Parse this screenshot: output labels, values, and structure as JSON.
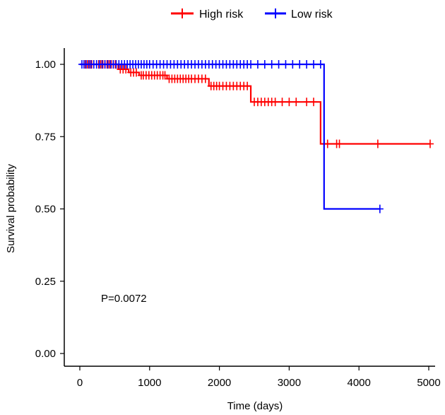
{
  "chart_data": {
    "type": "line",
    "step": true,
    "xlabel": "Time (days)",
    "ylabel": "Survival probability",
    "xlim": [
      0,
      5000
    ],
    "ylim": [
      0,
      1
    ],
    "xticks": [
      0,
      1000,
      2000,
      3000,
      4000,
      5000
    ],
    "xtick_labels": [
      "0",
      "1000",
      "2000",
      "3000",
      "4000",
      "5000"
    ],
    "yticks": [
      0,
      0.25,
      0.5,
      0.75,
      1.0
    ],
    "ytick_labels": [
      "0.00",
      "0.25",
      "0.50",
      "0.75",
      "1.00"
    ],
    "grid": false,
    "legend_position": "top-center",
    "annotation": "P=0.0072",
    "series": [
      {
        "name": "High risk",
        "color": "#ff0000",
        "steps": [
          [
            0,
            1.0
          ],
          [
            550,
            0.983
          ],
          [
            700,
            0.972
          ],
          [
            850,
            0.962
          ],
          [
            1250,
            0.95
          ],
          [
            1850,
            0.925
          ],
          [
            2450,
            0.87
          ],
          [
            3450,
            0.725
          ],
          [
            5020,
            0.725
          ]
        ],
        "censors": [
          [
            80,
            1.0
          ],
          [
            110,
            1.0
          ],
          [
            140,
            1.0
          ],
          [
            170,
            1.0
          ],
          [
            200,
            1.0
          ],
          [
            240,
            1.0
          ],
          [
            270,
            1.0
          ],
          [
            300,
            1.0
          ],
          [
            330,
            1.0
          ],
          [
            360,
            1.0
          ],
          [
            390,
            1.0
          ],
          [
            420,
            1.0
          ],
          [
            450,
            1.0
          ],
          [
            480,
            1.0
          ],
          [
            510,
            1.0
          ],
          [
            580,
            0.983
          ],
          [
            620,
            0.983
          ],
          [
            660,
            0.983
          ],
          [
            730,
            0.972
          ],
          [
            770,
            0.972
          ],
          [
            810,
            0.972
          ],
          [
            880,
            0.962
          ],
          [
            910,
            0.962
          ],
          [
            950,
            0.962
          ],
          [
            990,
            0.962
          ],
          [
            1030,
            0.962
          ],
          [
            1070,
            0.962
          ],
          [
            1110,
            0.962
          ],
          [
            1150,
            0.962
          ],
          [
            1190,
            0.962
          ],
          [
            1220,
            0.962
          ],
          [
            1280,
            0.95
          ],
          [
            1320,
            0.95
          ],
          [
            1360,
            0.95
          ],
          [
            1400,
            0.95
          ],
          [
            1440,
            0.95
          ],
          [
            1480,
            0.95
          ],
          [
            1520,
            0.95
          ],
          [
            1560,
            0.95
          ],
          [
            1600,
            0.95
          ],
          [
            1650,
            0.95
          ],
          [
            1700,
            0.95
          ],
          [
            1750,
            0.95
          ],
          [
            1800,
            0.95
          ],
          [
            1880,
            0.925
          ],
          [
            1920,
            0.925
          ],
          [
            1960,
            0.925
          ],
          [
            2000,
            0.925
          ],
          [
            2050,
            0.925
          ],
          [
            2100,
            0.925
          ],
          [
            2150,
            0.925
          ],
          [
            2200,
            0.925
          ],
          [
            2250,
            0.925
          ],
          [
            2300,
            0.925
          ],
          [
            2350,
            0.925
          ],
          [
            2400,
            0.925
          ],
          [
            2500,
            0.87
          ],
          [
            2550,
            0.87
          ],
          [
            2600,
            0.87
          ],
          [
            2650,
            0.87
          ],
          [
            2700,
            0.87
          ],
          [
            2750,
            0.87
          ],
          [
            2800,
            0.87
          ],
          [
            2900,
            0.87
          ],
          [
            3000,
            0.87
          ],
          [
            3100,
            0.87
          ],
          [
            3250,
            0.87
          ],
          [
            3350,
            0.87
          ],
          [
            3500,
            0.725
          ],
          [
            3550,
            0.725
          ],
          [
            3680,
            0.725
          ],
          [
            3720,
            0.725
          ],
          [
            4270,
            0.725
          ],
          [
            5020,
            0.725
          ]
        ]
      },
      {
        "name": "Low risk",
        "color": "#0000ff",
        "steps": [
          [
            0,
            1.0
          ],
          [
            3500,
            1.0
          ],
          [
            3500,
            0.5
          ],
          [
            4300,
            0.5
          ]
        ],
        "censors": [
          [
            30,
            1.0
          ],
          [
            60,
            1.0
          ],
          [
            90,
            1.0
          ],
          [
            130,
            1.0
          ],
          [
            160,
            1.0
          ],
          [
            200,
            1.0
          ],
          [
            240,
            1.0
          ],
          [
            280,
            1.0
          ],
          [
            320,
            1.0
          ],
          [
            360,
            1.0
          ],
          [
            400,
            1.0
          ],
          [
            440,
            1.0
          ],
          [
            480,
            1.0
          ],
          [
            520,
            1.0
          ],
          [
            560,
            1.0
          ],
          [
            600,
            1.0
          ],
          [
            640,
            1.0
          ],
          [
            680,
            1.0
          ],
          [
            720,
            1.0
          ],
          [
            760,
            1.0
          ],
          [
            800,
            1.0
          ],
          [
            840,
            1.0
          ],
          [
            880,
            1.0
          ],
          [
            920,
            1.0
          ],
          [
            960,
            1.0
          ],
          [
            1000,
            1.0
          ],
          [
            1050,
            1.0
          ],
          [
            1100,
            1.0
          ],
          [
            1150,
            1.0
          ],
          [
            1200,
            1.0
          ],
          [
            1250,
            1.0
          ],
          [
            1300,
            1.0
          ],
          [
            1350,
            1.0
          ],
          [
            1400,
            1.0
          ],
          [
            1450,
            1.0
          ],
          [
            1500,
            1.0
          ],
          [
            1550,
            1.0
          ],
          [
            1600,
            1.0
          ],
          [
            1650,
            1.0
          ],
          [
            1700,
            1.0
          ],
          [
            1750,
            1.0
          ],
          [
            1800,
            1.0
          ],
          [
            1850,
            1.0
          ],
          [
            1900,
            1.0
          ],
          [
            1950,
            1.0
          ],
          [
            2000,
            1.0
          ],
          [
            2050,
            1.0
          ],
          [
            2100,
            1.0
          ],
          [
            2150,
            1.0
          ],
          [
            2200,
            1.0
          ],
          [
            2250,
            1.0
          ],
          [
            2300,
            1.0
          ],
          [
            2350,
            1.0
          ],
          [
            2400,
            1.0
          ],
          [
            2450,
            1.0
          ],
          [
            2550,
            1.0
          ],
          [
            2650,
            1.0
          ],
          [
            2750,
            1.0
          ],
          [
            2850,
            1.0
          ],
          [
            2950,
            1.0
          ],
          [
            3050,
            1.0
          ],
          [
            3150,
            1.0
          ],
          [
            3250,
            1.0
          ],
          [
            3350,
            1.0
          ],
          [
            3450,
            1.0
          ],
          [
            4300,
            0.5
          ]
        ]
      }
    ]
  }
}
